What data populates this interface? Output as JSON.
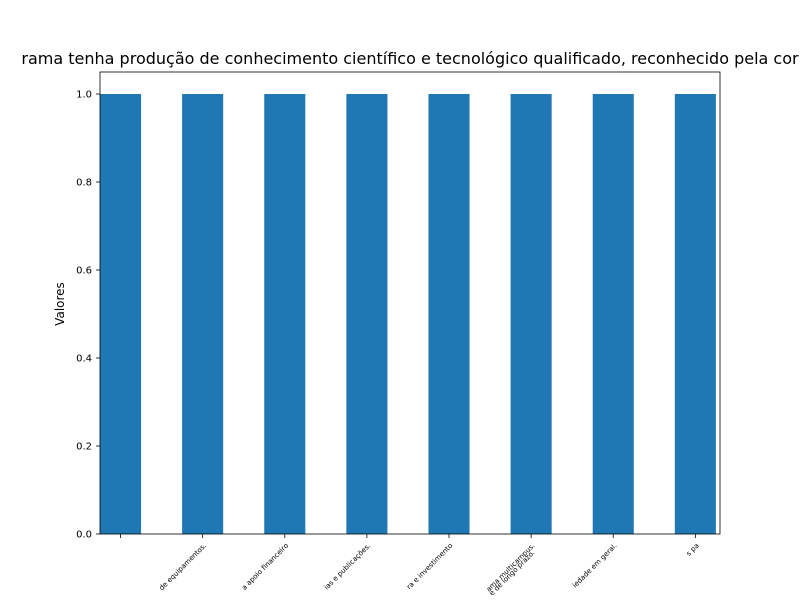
{
  "colors": {
    "bar": "#1f77b4",
    "axis": "#000000",
    "background": "#ffffff"
  },
  "chart_data": {
    "type": "bar",
    "title": "rama tenha produção de conhecimento científico e tecnológico qualificado, reconhecido pela cor",
    "xlabel": "",
    "ylabel": "Valores",
    "ylim": [
      0,
      1.05
    ],
    "yticks": [
      0.0,
      0.2,
      0.4,
      0.6,
      0.8,
      1.0
    ],
    "ytick_labels": [
      "0.0",
      "0.2",
      "0.4",
      "0.6",
      "0.8",
      "1.0"
    ],
    "grid": false,
    "categories": [
      "",
      "de equipamentos.",
      "a apoio  financeiro",
      "ias e publicações.",
      "ra e investimento",
      "ama multicampus.\ne de longo prazo.",
      "iedade em geral.",
      "s pa"
    ],
    "values": [
      1,
      1,
      1,
      1,
      1,
      1,
      1,
      1
    ]
  }
}
